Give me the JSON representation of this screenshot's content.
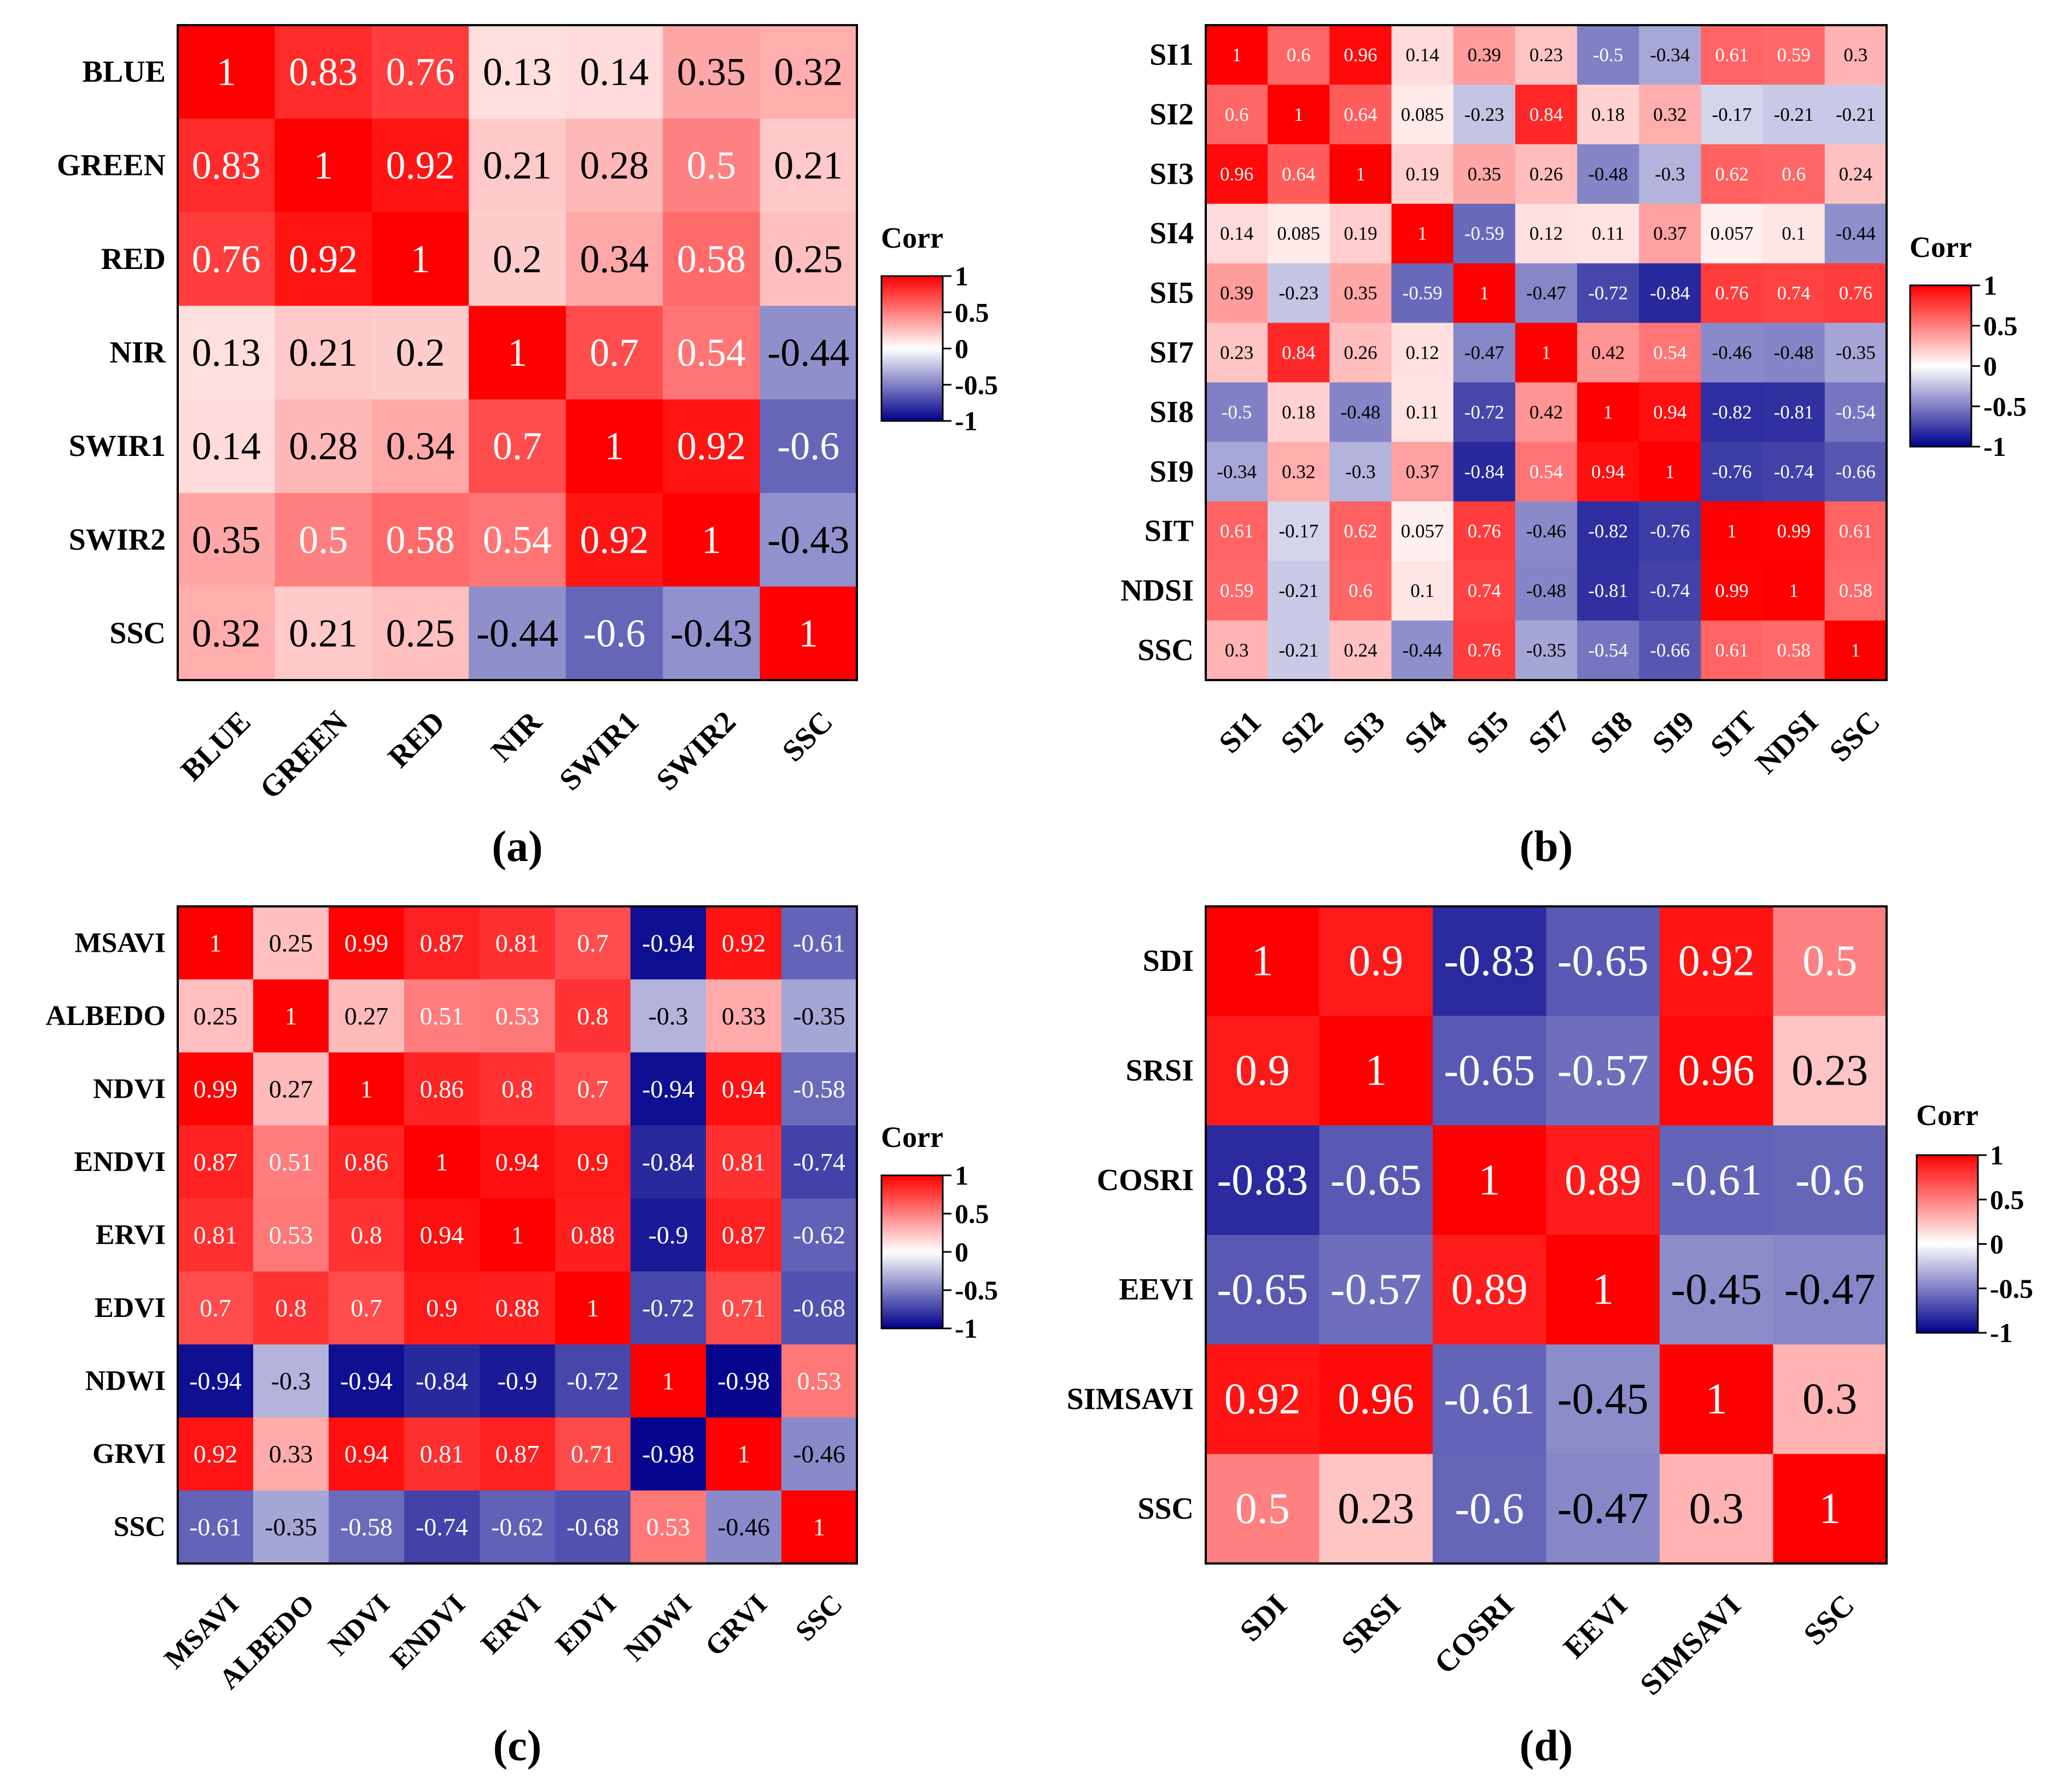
{
  "chart_data": [
    {
      "type": "heatmap",
      "panel": "(a)",
      "labels": [
        "BLUE",
        "GREEN",
        "RED",
        "NIR",
        "SWIR1",
        "SWIR2",
        "SSC"
      ],
      "values": [
        [
          "1",
          "0.83",
          "0.76",
          "0.13",
          "0.14",
          "0.35",
          "0.32"
        ],
        [
          "0.83",
          "1",
          "0.92",
          "0.21",
          "0.28",
          "0.5",
          "0.21"
        ],
        [
          "0.76",
          "0.92",
          "1",
          "0.2",
          "0.34",
          "0.58",
          "0.25"
        ],
        [
          "0.13",
          "0.21",
          "0.2",
          "1",
          "0.7",
          "0.54",
          "-0.44"
        ],
        [
          "0.14",
          "0.28",
          "0.34",
          "0.7",
          "1",
          "0.92",
          "-0.6"
        ],
        [
          "0.35",
          "0.5",
          "0.58",
          "0.54",
          "0.92",
          "1",
          "-0.43"
        ],
        [
          "0.32",
          "0.21",
          "0.25",
          "-0.44",
          "-0.6",
          "-0.43",
          "1"
        ]
      ],
      "colorbar": {
        "title": "Corr",
        "ticks": [
          "1",
          "0.5",
          "0",
          "-0.5",
          "-1"
        ],
        "range": [
          -1,
          1
        ]
      }
    },
    {
      "type": "heatmap",
      "panel": "(b)",
      "labels": [
        "SI1",
        "SI2",
        "SI3",
        "SI4",
        "SI5",
        "SI7",
        "SI8",
        "SI9",
        "SIT",
        "NDSI",
        "SSC"
      ],
      "values": [
        [
          "1",
          "0.6",
          "0.96",
          "0.14",
          "0.39",
          "0.23",
          "-0.5",
          "-0.34",
          "0.61",
          "0.59",
          "0.3"
        ],
        [
          "0.6",
          "1",
          "0.64",
          "0.085",
          "-0.23",
          "0.84",
          "0.18",
          "0.32",
          "-0.17",
          "-0.21",
          "-0.21"
        ],
        [
          "0.96",
          "0.64",
          "1",
          "0.19",
          "0.35",
          "0.26",
          "-0.48",
          "-0.3",
          "0.62",
          "0.6",
          "0.24"
        ],
        [
          "0.14",
          "0.085",
          "0.19",
          "1",
          "-0.59",
          "0.12",
          "0.11",
          "0.37",
          "0.057",
          "0.1",
          "-0.44"
        ],
        [
          "0.39",
          "-0.23",
          "0.35",
          "-0.59",
          "1",
          "-0.47",
          "-0.72",
          "-0.84",
          "0.76",
          "0.74",
          "0.76"
        ],
        [
          "0.23",
          "0.84",
          "0.26",
          "0.12",
          "-0.47",
          "1",
          "0.42",
          "0.54",
          "-0.46",
          "-0.48",
          "-0.35"
        ],
        [
          "-0.5",
          "0.18",
          "-0.48",
          "0.11",
          "-0.72",
          "0.42",
          "1",
          "0.94",
          "-0.82",
          "-0.81",
          "-0.54"
        ],
        [
          "-0.34",
          "0.32",
          "-0.3",
          "0.37",
          "-0.84",
          "0.54",
          "0.94",
          "1",
          "-0.76",
          "-0.74",
          "-0.66"
        ],
        [
          "0.61",
          "-0.17",
          "0.62",
          "0.057",
          "0.76",
          "-0.46",
          "-0.82",
          "-0.76",
          "1",
          "0.99",
          "0.61"
        ],
        [
          "0.59",
          "-0.21",
          "0.6",
          "0.1",
          "0.74",
          "-0.48",
          "-0.81",
          "-0.74",
          "0.99",
          "1",
          "0.58"
        ],
        [
          "0.3",
          "-0.21",
          "0.24",
          "-0.44",
          "0.76",
          "-0.35",
          "-0.54",
          "-0.66",
          "0.61",
          "0.58",
          "1"
        ]
      ],
      "colorbar": {
        "title": "Corr",
        "ticks": [
          "1",
          "0.5",
          "0",
          "-0.5",
          "-1"
        ],
        "range": [
          -1,
          1
        ]
      }
    },
    {
      "type": "heatmap",
      "panel": "(c)",
      "labels": [
        "MSAVI",
        "ALBEDO",
        "NDVI",
        "ENDVI",
        "ERVI",
        "EDVI",
        "NDWI",
        "GRVI",
        "SSC"
      ],
      "values": [
        [
          "1",
          "0.25",
          "0.99",
          "0.87",
          "0.81",
          "0.7",
          "-0.94",
          "0.92",
          "-0.61"
        ],
        [
          "0.25",
          "1",
          "0.27",
          "0.51",
          "0.53",
          "0.8",
          "-0.3",
          "0.33",
          "-0.35"
        ],
        [
          "0.99",
          "0.27",
          "1",
          "0.86",
          "0.8",
          "0.7",
          "-0.94",
          "0.94",
          "-0.58"
        ],
        [
          "0.87",
          "0.51",
          "0.86",
          "1",
          "0.94",
          "0.9",
          "-0.84",
          "0.81",
          "-0.74"
        ],
        [
          "0.81",
          "0.53",
          "0.8",
          "0.94",
          "1",
          "0.88",
          "-0.9",
          "0.87",
          "-0.62"
        ],
        [
          "0.7",
          "0.8",
          "0.7",
          "0.9",
          "0.88",
          "1",
          "-0.72",
          "0.71",
          "-0.68"
        ],
        [
          "-0.94",
          "-0.3",
          "-0.94",
          "-0.84",
          "-0.9",
          "-0.72",
          "1",
          "-0.98",
          "0.53"
        ],
        [
          "0.92",
          "0.33",
          "0.94",
          "0.81",
          "0.87",
          "0.71",
          "-0.98",
          "1",
          "-0.46"
        ],
        [
          "-0.61",
          "-0.35",
          "-0.58",
          "-0.74",
          "-0.62",
          "-0.68",
          "0.53",
          "-0.46",
          "1"
        ]
      ],
      "colorbar": {
        "title": "Corr",
        "ticks": [
          "1",
          "0.5",
          "0",
          "-0.5",
          "-1"
        ],
        "range": [
          -1,
          1
        ]
      }
    },
    {
      "type": "heatmap",
      "panel": "(d)",
      "labels": [
        "SDI",
        "SRSI",
        "COSRI",
        "EEVI",
        "SIMSAVI",
        "SSC"
      ],
      "values": [
        [
          "1",
          "0.9",
          "-0.83",
          "-0.65",
          "0.92",
          "0.5"
        ],
        [
          "0.9",
          "1",
          "-0.65",
          "-0.57",
          "0.96",
          "0.23"
        ],
        [
          "-0.83",
          "-0.65",
          "1",
          "0.89",
          "-0.61",
          "-0.6"
        ],
        [
          "-0.65",
          "-0.57",
          "0.89",
          "1",
          "-0.45",
          "-0.47"
        ],
        [
          "0.92",
          "0.96",
          "-0.61",
          "-0.45",
          "1",
          "0.3"
        ],
        [
          "0.5",
          "0.23",
          "-0.6",
          "-0.47",
          "0.3",
          "1"
        ]
      ],
      "colorbar": {
        "title": "Corr",
        "ticks": [
          "1",
          "0.5",
          "0",
          "-0.5",
          "-1"
        ],
        "range": [
          -1,
          1
        ]
      }
    }
  ],
  "colors": {
    "positive": "#ff0000",
    "neutral": "#ffffff",
    "negative": "#00008b",
    "frame": "#000000"
  }
}
